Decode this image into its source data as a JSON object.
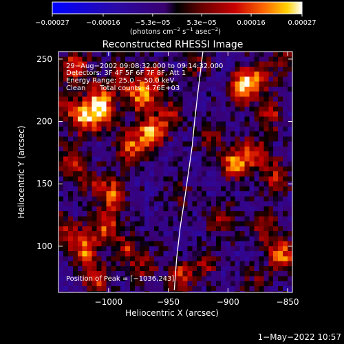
{
  "chart_data": {
    "type": "heatmap",
    "title": "Reconstructed RHESSI Image",
    "xlabel": "Heliocentric X (arcsec)",
    "ylabel": "Heliocentric Y (arcsec)",
    "xlim": [
      -1042,
      -846
    ],
    "ylim": [
      63,
      256
    ],
    "x_ticks": [
      {
        "value": -1000,
        "label": "−1000"
      },
      {
        "value": -950,
        "label": "−950"
      },
      {
        "value": -900,
        "label": "−900"
      },
      {
        "value": -850,
        "label": "−850"
      }
    ],
    "y_ticks": [
      {
        "value": 100,
        "label": "100"
      },
      {
        "value": 150,
        "label": "150"
      },
      {
        "value": 200,
        "label": "200"
      },
      {
        "value": 250,
        "label": "250"
      }
    ],
    "colorbar": {
      "range": [
        -0.00027,
        0.00027
      ],
      "tick_labels": [
        {
          "value": -0.00027,
          "label": "−0.00027"
        },
        {
          "value": -0.00016,
          "label": "−0.00016"
        },
        {
          "value": -5.3e-05,
          "label": "−5.3e−05"
        },
        {
          "value": 5.3e-05,
          "label": "5.3e−05"
        },
        {
          "value": 0.00016,
          "label": "0.00016"
        },
        {
          "value": 0.00027,
          "label": "0.00027"
        }
      ],
      "unit_prefix": "(photons cm",
      "unit_exp1": "−2",
      "unit_mid": " s",
      "unit_exp2": "−1",
      "unit_mid2": " asec",
      "unit_exp3": "−2",
      "unit_suffix": ")"
    },
    "annotations": {
      "time_range": "29−Aug−2002 09:08:32.000 to 09:14:32.000",
      "detectors": "Detectors: 3F 4F 5F 6F 7F 8F, Att 1",
      "energy": "Energy Range: 25.0 − 50.0 keV",
      "method": "Clean",
      "counts": "Total counts: 4.76E+03",
      "peak": "Position of Peak = [−1036,243]"
    },
    "limb_line": [
      {
        "x": -945,
        "y": 65
      },
      {
        "x": -943,
        "y": 90
      },
      {
        "x": -940,
        "y": 115
      },
      {
        "x": -936,
        "y": 140
      },
      {
        "x": -933,
        "y": 160
      },
      {
        "x": -930,
        "y": 180
      },
      {
        "x": -928,
        "y": 200
      },
      {
        "x": -925,
        "y": 225
      },
      {
        "x": -921,
        "y": 256
      }
    ],
    "blobs": [
      {
        "x": -1028,
        "y": 245,
        "v": 0.0002
      },
      {
        "x": -1008,
        "y": 218,
        "v": 0.00022
      },
      {
        "x": -1020,
        "y": 203,
        "v": 0.00025
      },
      {
        "x": -1003,
        "y": 205,
        "v": 0.00019
      },
      {
        "x": -990,
        "y": 235,
        "v": 0.00016
      },
      {
        "x": -973,
        "y": 220,
        "v": 0.00024
      },
      {
        "x": -962,
        "y": 235,
        "v": 0.00017
      },
      {
        "x": -950,
        "y": 205,
        "v": 0.00015
      },
      {
        "x": -965,
        "y": 190,
        "v": 0.00027
      },
      {
        "x": -983,
        "y": 178,
        "v": 0.00022
      },
      {
        "x": -1030,
        "y": 168,
        "v": 0.00018
      },
      {
        "x": -1015,
        "y": 152,
        "v": 0.00012
      },
      {
        "x": -996,
        "y": 142,
        "v": 0.00021
      },
      {
        "x": -1002,
        "y": 118,
        "v": 0.0002
      },
      {
        "x": -1020,
        "y": 98,
        "v": 0.00023
      },
      {
        "x": -1036,
        "y": 113,
        "v": 0.00016
      },
      {
        "x": -985,
        "y": 98,
        "v": 0.00015
      },
      {
        "x": -1010,
        "y": 72,
        "v": 0.00016
      },
      {
        "x": -970,
        "y": 85,
        "v": 0.00013
      },
      {
        "x": -888,
        "y": 228,
        "v": 0.00027
      },
      {
        "x": -875,
        "y": 235,
        "v": 0.0002
      },
      {
        "x": -865,
        "y": 205,
        "v": 0.00016
      },
      {
        "x": -895,
        "y": 166,
        "v": 0.00024
      },
      {
        "x": -878,
        "y": 174,
        "v": 0.0002
      },
      {
        "x": -860,
        "y": 155,
        "v": 0.00017
      },
      {
        "x": -905,
        "y": 120,
        "v": 0.00016
      },
      {
        "x": -870,
        "y": 115,
        "v": 0.00014
      },
      {
        "x": -855,
        "y": 93,
        "v": 0.00026
      },
      {
        "x": -940,
        "y": 75,
        "v": 0.00019
      },
      {
        "x": -920,
        "y": 85,
        "v": 0.00013
      },
      {
        "x": -878,
        "y": 70,
        "v": 0.0001
      },
      {
        "x": -925,
        "y": 248,
        "v": 0.00011
      },
      {
        "x": -915,
        "y": 186,
        "v": 0.00012
      },
      {
        "x": -853,
        "y": 248,
        "v": 0.00013
      },
      {
        "x": -940,
        "y": 140,
        "v": 8e-05
      },
      {
        "x": -1037,
        "y": 215,
        "v": 0.00015
      }
    ]
  },
  "footer_timestamp": "1−May−2022 10:57"
}
